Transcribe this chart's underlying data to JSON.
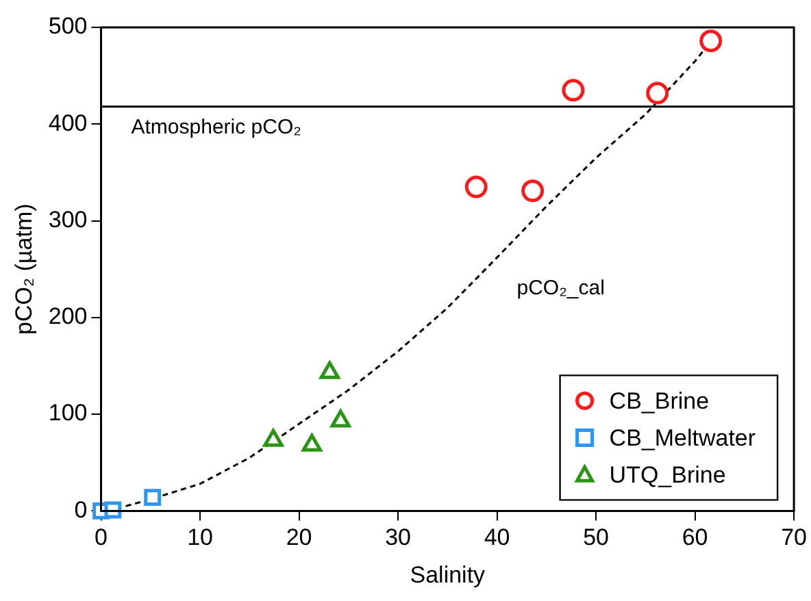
{
  "chart_data": {
    "type": "scatter",
    "xlabel": "Salinity",
    "ylabel": "pCO₂ (µatm)",
    "xlim": [
      0,
      70
    ],
    "xticks": [
      0,
      10,
      20,
      30,
      40,
      50,
      60,
      70
    ],
    "ylim": [
      0,
      500
    ],
    "yticks": [
      0,
      100,
      200,
      300,
      400,
      500
    ],
    "grid": false,
    "legend": "bottom right",
    "series": [
      {
        "name": "CB_Brine",
        "type": "scatter",
        "marker": "circle",
        "color": "#ff1a1a",
        "x": [
          37.9,
          43.6,
          47.7,
          56.2,
          61.6
        ],
        "values": [
          335,
          331,
          435,
          432,
          486
        ]
      },
      {
        "name": "CB_Meltwater",
        "type": "scatter",
        "marker": "square",
        "color": "#2e95f0",
        "x": [
          0,
          1.2,
          5.2
        ],
        "values": [
          0,
          1,
          14
        ]
      },
      {
        "name": "UTQ_Brine",
        "type": "scatter",
        "marker": "triangle",
        "color": "#2a9415",
        "x": [
          17.4,
          21.3,
          23.1,
          24.2
        ],
        "values": [
          73,
          68,
          143,
          93
        ]
      },
      {
        "type": "line",
        "marker": "none",
        "line_style": "dashed",
        "color": "#000000",
        "x": [
          2.5,
          5,
          10,
          15,
          20,
          25,
          30,
          35,
          40,
          45,
          50,
          55,
          60,
          61.5
        ],
        "values": [
          5,
          12,
          28,
          55,
          90,
          125,
          165,
          210,
          262,
          315,
          365,
          410,
          465,
          484
        ]
      }
    ],
    "ref_lines": [
      {
        "axis": "y",
        "value": 418,
        "label": "Atmospheric pCO₂",
        "color": "#000000"
      }
    ],
    "annotations": [
      "pCO₂_cal"
    ]
  }
}
